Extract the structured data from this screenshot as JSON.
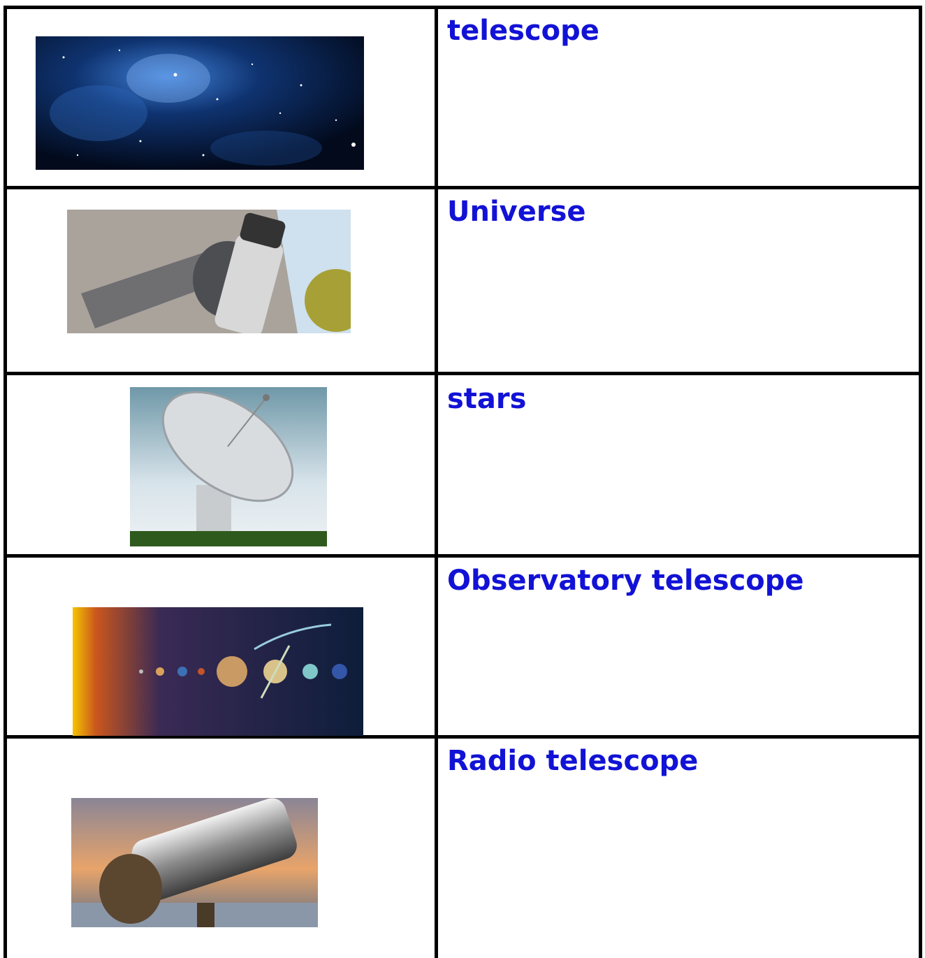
{
  "table": {
    "rows": [
      {
        "label": "telescope"
      },
      {
        "label": "Universe"
      },
      {
        "label": "stars"
      },
      {
        "label": "Observatory telescope"
      },
      {
        "label": "Radio telescope"
      }
    ]
  }
}
